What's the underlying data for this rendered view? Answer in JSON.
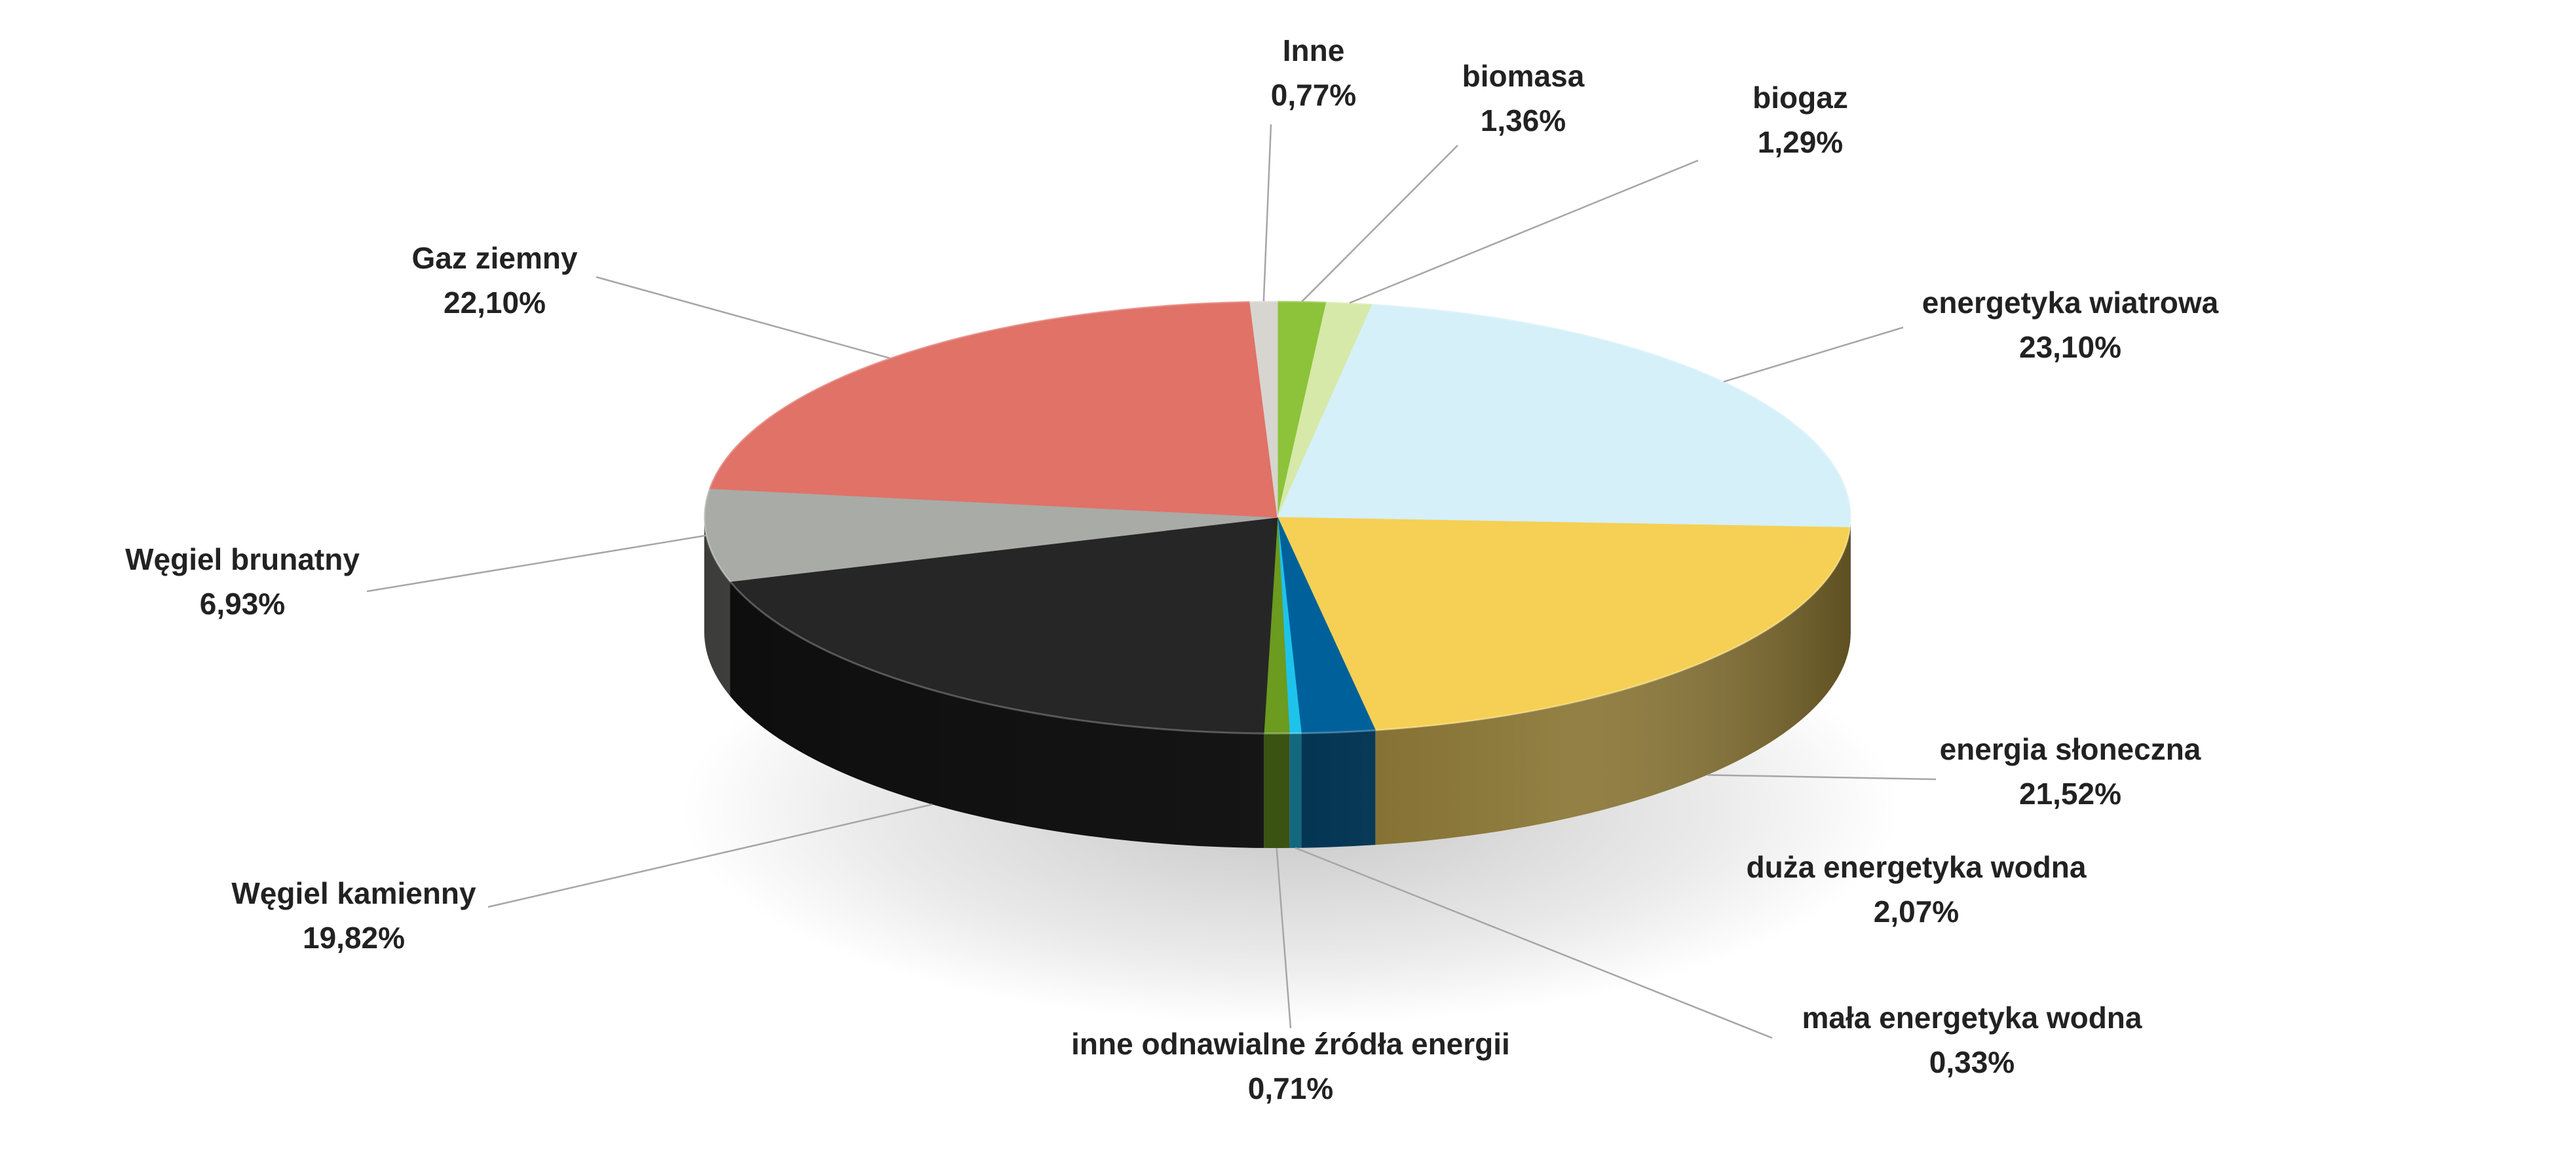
{
  "chart_data": {
    "type": "pie",
    "title": "",
    "style": "3d",
    "slices": [
      {
        "name": "biomasa",
        "value": 1.36,
        "value_label": "1,36%",
        "color": "#8cc33a"
      },
      {
        "name": "biogaz",
        "value": 1.29,
        "value_label": "1,29%",
        "color": "#d6e9a8"
      },
      {
        "name": "energetyka wiatrowa",
        "value": 23.1,
        "value_label": "23,10%",
        "color": "#d5f0f9"
      },
      {
        "name": "energia słoneczna",
        "value": 21.52,
        "value_label": "21,52%",
        "color": "#f5d055"
      },
      {
        "name": "duża energetyka wodna",
        "value": 2.07,
        "value_label": "2,07%",
        "color": "#00619a"
      },
      {
        "name": "mała energetyka wodna",
        "value": 0.33,
        "value_label": "0,33%",
        "color": "#1ec3ec"
      },
      {
        "name": "inne odnawialne źródła energii",
        "value": 0.71,
        "value_label": "0,71%",
        "color": "#6b9b1f"
      },
      {
        "name": "Węgiel kamienny",
        "value": 19.82,
        "value_label": "19,82%",
        "color": "#262626"
      },
      {
        "name": "Węgiel brunatny",
        "value": 6.93,
        "value_label": "6,93%",
        "color": "#a9aba6"
      },
      {
        "name": "Gaz ziemny",
        "value": 22.1,
        "value_label": "22,10%",
        "color": "#e07268"
      },
      {
        "name": "Inne",
        "value": 0.77,
        "value_label": "0,77%",
        "color": "#d7d5cf"
      }
    ]
  }
}
